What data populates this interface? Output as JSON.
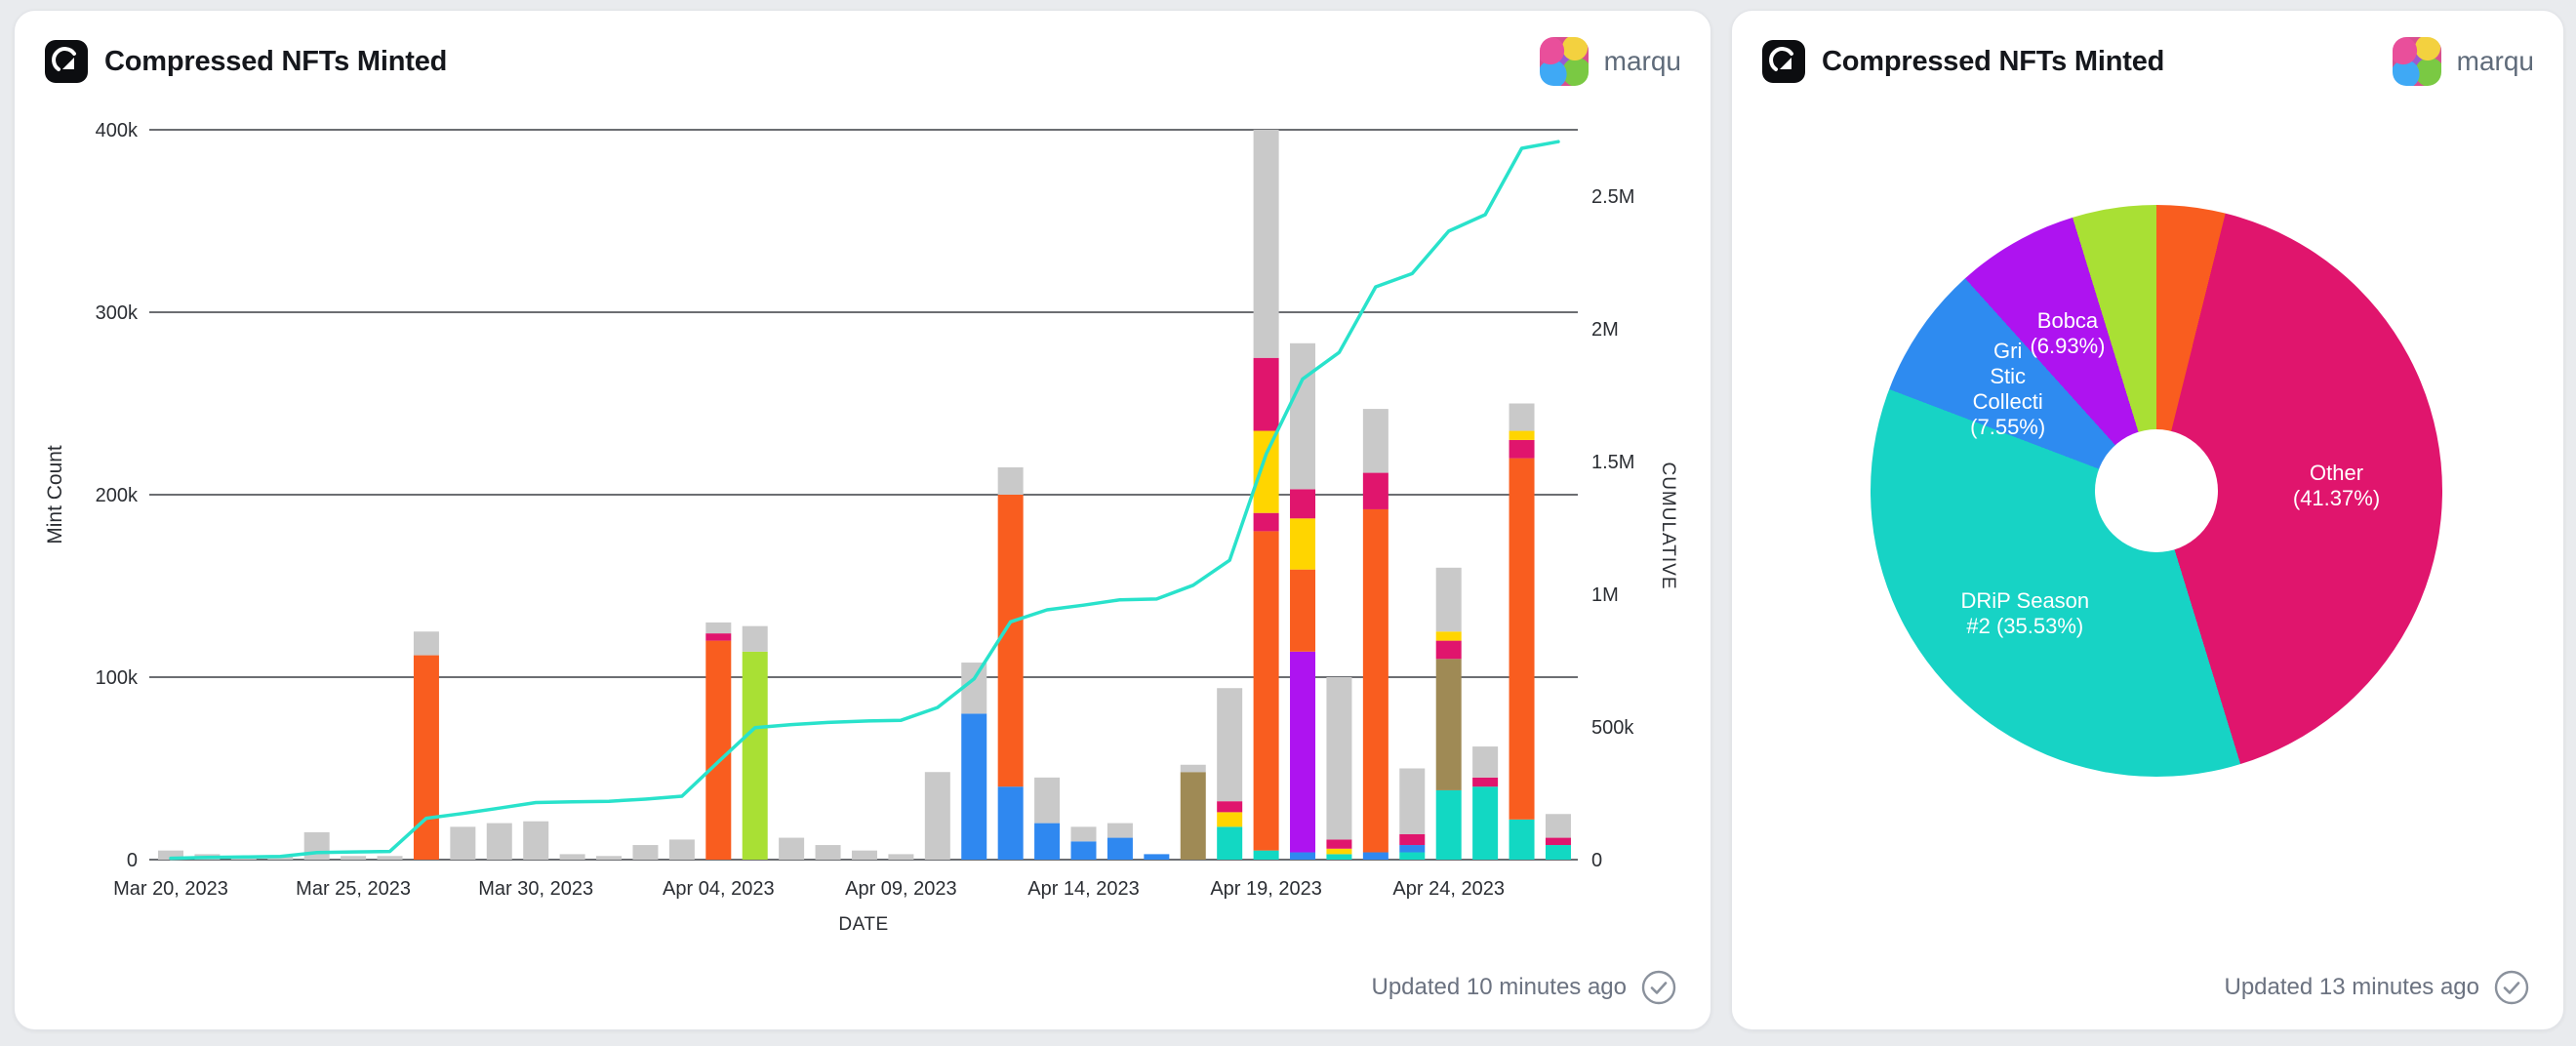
{
  "page": {
    "background": "#e9ebee"
  },
  "cards": {
    "left": {
      "title": "Compressed NFTs Minted",
      "user": "marqu",
      "updated": "Updated 10 minutes ago"
    },
    "right": {
      "title": "Compressed NFTs Minted",
      "user": "marqu",
      "updated": "Updated 13 minutes ago"
    }
  },
  "chart_data": [
    {
      "type": "bar",
      "title": "Compressed NFTs Minted",
      "xlabel": "DATE",
      "ylabel_left": "Mint Count",
      "ylabel_right": "CUMULATIVE",
      "stacked": true,
      "grid": true,
      "ylim_left": [
        0,
        400000
      ],
      "ylim_right": [
        0,
        2750000
      ],
      "yticks_left": [
        "0",
        "100k",
        "200k",
        "300k",
        "400k"
      ],
      "yticks_right_labels": [
        "0",
        "500k",
        "1M",
        "1.5M",
        "2M",
        "2.5M"
      ],
      "yticks_right_values": [
        0,
        500000,
        1000000,
        1500000,
        2000000,
        2500000
      ],
      "xticks": [
        "Mar 20, 2023",
        "Mar 25, 2023",
        "Mar 30, 2023",
        "Apr 04, 2023",
        "Apr 09, 2023",
        "Apr 14, 2023",
        "Apr 19, 2023",
        "Apr 24, 2023"
      ],
      "xtick_indices": [
        0,
        5,
        10,
        15,
        20,
        25,
        30,
        35
      ],
      "colors": {
        "gray": "#c9c9c9",
        "orange": "#f95d1f",
        "green": "#a9e034",
        "blue": "#2f88f0",
        "yellow": "#ffd500",
        "magenta": "#e0156d",
        "purple": "#ae13f0",
        "brown": "#9f8a55",
        "teal": "#12d8c3"
      },
      "line": {
        "name": "Cumulative",
        "color": "#29e2cb",
        "derivation": "running total of daily stacked bar sums",
        "final_value_approx": 2705000
      },
      "bars": [
        {
          "date": "Mar 20",
          "stack": [
            [
              "gray",
              5000
            ]
          ]
        },
        {
          "date": "Mar 21",
          "stack": [
            [
              "gray",
              3000
            ]
          ]
        },
        {
          "date": "Mar 22",
          "stack": [
            [
              "gray",
              2000
            ]
          ]
        },
        {
          "date": "Mar 23",
          "stack": [
            [
              "gray",
              2000
            ]
          ]
        },
        {
          "date": "Mar 24",
          "stack": [
            [
              "gray",
              15000
            ]
          ]
        },
        {
          "date": "Mar 25",
          "stack": [
            [
              "gray",
              2000
            ]
          ]
        },
        {
          "date": "Mar 26",
          "stack": [
            [
              "gray",
              2000
            ]
          ]
        },
        {
          "date": "Mar 27",
          "stack": [
            [
              "orange",
              112000
            ],
            [
              "gray",
              13000
            ]
          ]
        },
        {
          "date": "Mar 28",
          "stack": [
            [
              "gray",
              18000
            ]
          ]
        },
        {
          "date": "Mar 29",
          "stack": [
            [
              "gray",
              20000
            ]
          ]
        },
        {
          "date": "Mar 30",
          "stack": [
            [
              "gray",
              21000
            ]
          ]
        },
        {
          "date": "Mar 31",
          "stack": [
            [
              "gray",
              3000
            ]
          ]
        },
        {
          "date": "Apr 01",
          "stack": [
            [
              "gray",
              2000
            ]
          ]
        },
        {
          "date": "Apr 02",
          "stack": [
            [
              "gray",
              8000
            ]
          ]
        },
        {
          "date": "Apr 03",
          "stack": [
            [
              "gray",
              11000
            ]
          ]
        },
        {
          "date": "Apr 04",
          "stack": [
            [
              "orange",
              120000
            ],
            [
              "magenta",
              4000
            ],
            [
              "gray",
              6000
            ]
          ]
        },
        {
          "date": "Apr 05",
          "stack": [
            [
              "green",
              114000
            ],
            [
              "gray",
              14000
            ]
          ]
        },
        {
          "date": "Apr 06",
          "stack": [
            [
              "gray",
              12000
            ]
          ]
        },
        {
          "date": "Apr 07",
          "stack": [
            [
              "gray",
              8000
            ]
          ]
        },
        {
          "date": "Apr 08",
          "stack": [
            [
              "gray",
              5000
            ]
          ]
        },
        {
          "date": "Apr 09",
          "stack": [
            [
              "gray",
              3000
            ]
          ]
        },
        {
          "date": "Apr 10",
          "stack": [
            [
              "gray",
              48000
            ]
          ]
        },
        {
          "date": "Apr 11",
          "stack": [
            [
              "blue",
              80000
            ],
            [
              "gray",
              28000
            ]
          ]
        },
        {
          "date": "Apr 12",
          "stack": [
            [
              "blue",
              40000
            ],
            [
              "orange",
              160000
            ],
            [
              "gray",
              15000
            ]
          ]
        },
        {
          "date": "Apr 13",
          "stack": [
            [
              "blue",
              20000
            ],
            [
              "gray",
              25000
            ]
          ]
        },
        {
          "date": "Apr 14",
          "stack": [
            [
              "blue",
              10000
            ],
            [
              "gray",
              8000
            ]
          ]
        },
        {
          "date": "Apr 15",
          "stack": [
            [
              "blue",
              12000
            ],
            [
              "gray",
              8000
            ]
          ]
        },
        {
          "date": "Apr 16",
          "stack": [
            [
              "blue",
              3000
            ]
          ]
        },
        {
          "date": "Apr 17",
          "stack": [
            [
              "brown",
              48000
            ],
            [
              "gray",
              4000
            ]
          ]
        },
        {
          "date": "Apr 18",
          "stack": [
            [
              "teal",
              18000
            ],
            [
              "yellow",
              8000
            ],
            [
              "magenta",
              6000
            ],
            [
              "gray",
              62000
            ]
          ]
        },
        {
          "date": "Apr 19",
          "stack": [
            [
              "teal",
              5000
            ],
            [
              "orange",
              175000
            ],
            [
              "magenta",
              10000
            ],
            [
              "yellow",
              45000
            ],
            [
              "magenta",
              40000
            ],
            [
              "gray",
              125000
            ]
          ]
        },
        {
          "date": "Apr 20",
          "stack": [
            [
              "blue",
              4000
            ],
            [
              "purple",
              110000
            ],
            [
              "orange",
              45000
            ],
            [
              "yellow",
              28000
            ],
            [
              "magenta",
              16000
            ],
            [
              "gray",
              80000
            ]
          ]
        },
        {
          "date": "Apr 21",
          "stack": [
            [
              "teal",
              3000
            ],
            [
              "yellow",
              3000
            ],
            [
              "magenta",
              5000
            ],
            [
              "gray",
              89000
            ]
          ]
        },
        {
          "date": "Apr 22",
          "stack": [
            [
              "blue",
              4000
            ],
            [
              "orange",
              188000
            ],
            [
              "magenta",
              20000
            ],
            [
              "gray",
              35000
            ]
          ]
        },
        {
          "date": "Apr 23",
          "stack": [
            [
              "teal",
              4000
            ],
            [
              "blue",
              4000
            ],
            [
              "magenta",
              6000
            ],
            [
              "gray",
              36000
            ]
          ]
        },
        {
          "date": "Apr 24",
          "stack": [
            [
              "teal",
              38000
            ],
            [
              "brown",
              72000
            ],
            [
              "magenta",
              10000
            ],
            [
              "yellow",
              5000
            ],
            [
              "gray",
              35000
            ]
          ]
        },
        {
          "date": "Apr 25",
          "stack": [
            [
              "teal",
              40000
            ],
            [
              "magenta",
              5000
            ],
            [
              "gray",
              17000
            ]
          ]
        },
        {
          "date": "Apr 26",
          "stack": [
            [
              "teal",
              22000
            ],
            [
              "orange",
              198000
            ],
            [
              "magenta",
              10000
            ],
            [
              "yellow",
              5000
            ],
            [
              "gray",
              15000
            ]
          ]
        },
        {
          "date": "Apr 27",
          "stack": [
            [
              "teal",
              8000
            ],
            [
              "magenta",
              4000
            ],
            [
              "gray",
              13000
            ]
          ]
        }
      ]
    },
    {
      "type": "pie",
      "title": "Compressed NFTs Minted",
      "donut_hole_ratio": 0.21,
      "start_angle_deg": 0,
      "direction": "clockwise",
      "colors": {
        "orange": "#f95d1f",
        "magenta": "#e0156d",
        "teal": "#17d3c5",
        "blue": "#2e8bf0",
        "purple": "#ae13f0",
        "green": "#a9e034"
      },
      "slices": [
        {
          "name": "",
          "pct": 3.88,
          "color_key": "orange",
          "label_lines": []
        },
        {
          "name": "Other",
          "pct": 41.37,
          "color_key": "magenta",
          "label_lines": [
            "Other",
            "(41.37%)"
          ]
        },
        {
          "name": "DRiP Season #2",
          "pct": 35.53,
          "color_key": "teal",
          "label_lines": [
            "DRiP Season",
            "#2 (35.53%)"
          ]
        },
        {
          "name": "Gri Stic Collecti",
          "pct": 7.55,
          "color_key": "blue",
          "label_lines": [
            "Gri",
            "Stic",
            "Collecti",
            "(7.55%)"
          ]
        },
        {
          "name": "Bobca",
          "pct": 6.93,
          "color_key": "purple",
          "label_lines": [
            "Bobca",
            "(6.93%)"
          ]
        },
        {
          "name": "",
          "pct": 4.74,
          "color_key": "green",
          "label_lines": []
        }
      ]
    }
  ]
}
